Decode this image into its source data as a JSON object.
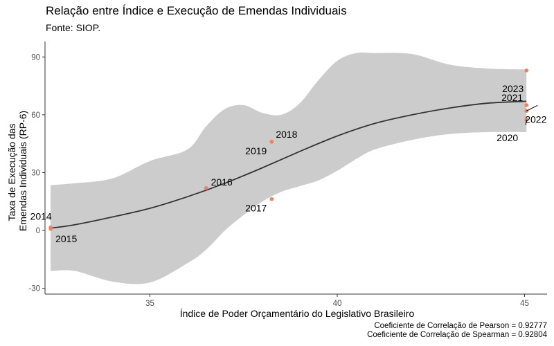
{
  "chart_data": {
    "type": "scatter",
    "title": "Relação entre Índice e Execução de Emendas Individuais",
    "subtitle": "Fonte: SIOP.",
    "xlabel": "Índice de Poder Orçamentário do Legislativo Brasileiro",
    "ylabel": [
      "Taxa de Execução das",
      "Emendas Individuais (RP-6)"
    ],
    "xlim": [
      32.2,
      45.6
    ],
    "ylim": [
      -33,
      98
    ],
    "xticks": [
      35,
      40,
      45
    ],
    "yticks": [
      -30,
      0,
      30,
      60,
      90
    ],
    "grid": false,
    "points": [
      {
        "label": "2014",
        "x": 32.35,
        "y": 1.6
      },
      {
        "label": "2015",
        "x": 32.35,
        "y": 0.8
      },
      {
        "label": "2016",
        "x": 36.5,
        "y": 22.0
      },
      {
        "label": "2017",
        "x": 38.25,
        "y": 16.3
      },
      {
        "label": "2018",
        "x": 38.25,
        "y": 46.0
      },
      {
        "label": "2019",
        "x": 38.25,
        "y": 46.0
      },
      {
        "label": "2020",
        "x": 45.05,
        "y": 57.5
      },
      {
        "label": "2021",
        "x": 45.05,
        "y": 65.0
      },
      {
        "label": "2022",
        "x": 45.05,
        "y": 62.0
      },
      {
        "label": "2023",
        "x": 45.05,
        "y": 83.0
      }
    ],
    "smooth_curve": [
      {
        "x": 32.35,
        "y": 1.2
      },
      {
        "x": 33.0,
        "y": 3.0
      },
      {
        "x": 34.0,
        "y": 7.0
      },
      {
        "x": 35.0,
        "y": 11.5
      },
      {
        "x": 36.0,
        "y": 17.5
      },
      {
        "x": 37.0,
        "y": 24.5
      },
      {
        "x": 38.0,
        "y": 32.5
      },
      {
        "x": 39.0,
        "y": 41.0
      },
      {
        "x": 40.0,
        "y": 49.0
      },
      {
        "x": 41.0,
        "y": 55.5
      },
      {
        "x": 42.0,
        "y": 60.0
      },
      {
        "x": 43.0,
        "y": 63.5
      },
      {
        "x": 44.0,
        "y": 66.0
      },
      {
        "x": 45.05,
        "y": 67.0
      }
    ],
    "confidence_band": [
      {
        "x": 32.35,
        "lower": -21.0,
        "upper": 23.5
      },
      {
        "x": 33.0,
        "lower": -21.0,
        "upper": 24.5
      },
      {
        "x": 34.0,
        "lower": -26.5,
        "upper": 27.0
      },
      {
        "x": 35.0,
        "lower": -27.0,
        "upper": 36.0
      },
      {
        "x": 36.0,
        "lower": -17.0,
        "upper": 42.0
      },
      {
        "x": 36.5,
        "lower": -10.0,
        "upper": 54.0
      },
      {
        "x": 37.0,
        "lower": 0.0,
        "upper": 63.0
      },
      {
        "x": 37.5,
        "lower": 8.0,
        "upper": 65.0
      },
      {
        "x": 38.0,
        "lower": 15.0,
        "upper": 61.0
      },
      {
        "x": 38.5,
        "lower": 20.0,
        "upper": 60.0
      },
      {
        "x": 39.0,
        "lower": 23.0,
        "upper": 66.0
      },
      {
        "x": 39.5,
        "lower": 26.0,
        "upper": 78.0
      },
      {
        "x": 40.0,
        "lower": 31.0,
        "upper": 88.0
      },
      {
        "x": 40.5,
        "lower": 37.0,
        "upper": 92.0
      },
      {
        "x": 41.0,
        "lower": 42.0,
        "upper": 92.0
      },
      {
        "x": 42.0,
        "lower": 47.0,
        "upper": 91.5
      },
      {
        "x": 43.0,
        "lower": 50.0,
        "upper": 86.0
      },
      {
        "x": 44.0,
        "lower": 51.0,
        "upper": 84.0
      },
      {
        "x": 45.05,
        "lower": 51.0,
        "upper": 83.5
      }
    ],
    "colors": {
      "points": "#f08060",
      "line": "#333333",
      "band": "#cccccc",
      "axis": "#333333"
    }
  },
  "caption": {
    "pearson": "Coeficiente de Correlação de Pearson = 0.92777",
    "spearman": "Coeficiente de Correlação de Spearman = 0.92804"
  }
}
